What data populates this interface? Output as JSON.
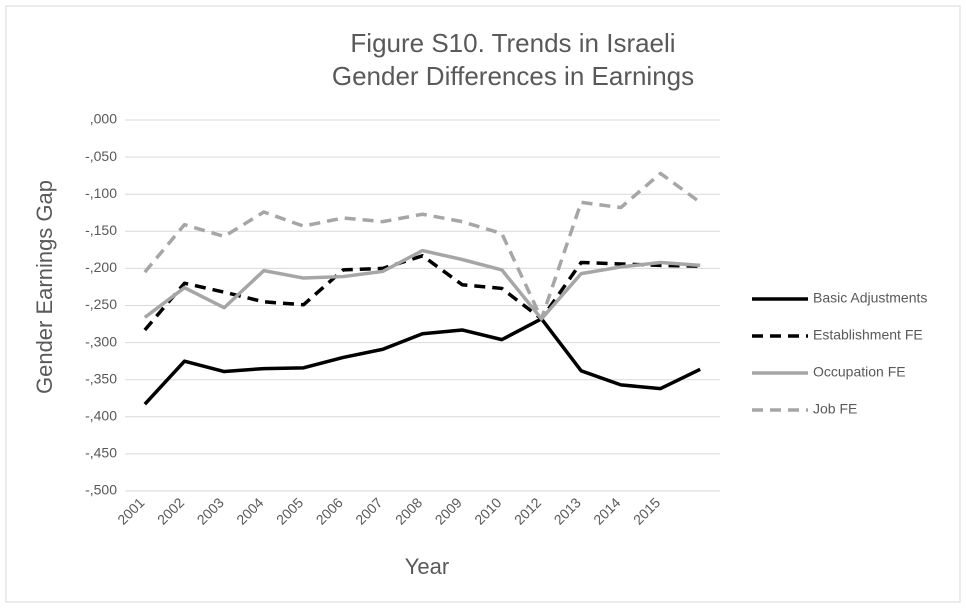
{
  "chart_data": {
    "type": "line",
    "title": [
      "Figure S10. Trends in Israeli",
      "Gender Differences in Earnings"
    ],
    "x_label": "Year",
    "y_label": "Gender Earnings Gap",
    "categories": [
      "2001",
      "2002",
      "2003",
      "2004",
      "2005",
      "2006",
      "2007",
      "2008",
      "2009",
      "2010",
      "2012",
      "2013",
      "2014",
      "2015",
      null
    ],
    "series": [
      {
        "name": "Basic Adjustments",
        "color": "#000000",
        "dash": "solid",
        "values": [
          -0.383,
          -0.325,
          -0.339,
          -0.335,
          -0.334,
          -0.32,
          -0.309,
          -0.288,
          -0.283,
          -0.296,
          -0.268,
          -0.338,
          -0.357,
          -0.362,
          -0.336
        ]
      },
      {
        "name": "Establishment FE",
        "color": "#000000",
        "dash": "dashed",
        "values": [
          -0.283,
          -0.22,
          -0.232,
          -0.245,
          -0.249,
          -0.202,
          -0.2,
          -0.183,
          -0.222,
          -0.227,
          -0.268,
          -0.192,
          -0.194,
          -0.196,
          -0.197
        ]
      },
      {
        "name": "Occupation FE",
        "color": "#a6a6a6",
        "dash": "solid",
        "values": [
          -0.266,
          -0.226,
          -0.253,
          -0.203,
          -0.213,
          -0.211,
          -0.204,
          -0.176,
          -0.188,
          -0.202,
          -0.268,
          -0.207,
          -0.198,
          -0.192,
          -0.196
        ]
      },
      {
        "name": "Job FE",
        "color": "#a6a6a6",
        "dash": "dashed",
        "values": [
          -0.205,
          -0.141,
          -0.157,
          -0.124,
          -0.143,
          -0.132,
          -0.137,
          -0.127,
          -0.137,
          -0.153,
          -0.268,
          -0.111,
          -0.118,
          -0.072,
          -0.111
        ]
      }
    ],
    "ylim": [
      -0.5,
      0
    ],
    "yticks": [
      {
        "value": -0.5,
        "label": "-,500"
      },
      {
        "value": -0.45,
        "label": "-,450"
      },
      {
        "value": -0.4,
        "label": "-,400"
      },
      {
        "value": -0.35,
        "label": "-,350"
      },
      {
        "value": -0.3,
        "label": "-,300"
      },
      {
        "value": -0.25,
        "label": "-,250"
      },
      {
        "value": -0.2,
        "label": "-,200"
      },
      {
        "value": -0.15,
        "label": "-,150"
      },
      {
        "value": -0.1,
        "label": "-,100"
      },
      {
        "value": -0.05,
        "label": "-,050"
      },
      {
        "value": 0,
        "label": ",000"
      }
    ],
    "grid": true,
    "legend": "right"
  }
}
